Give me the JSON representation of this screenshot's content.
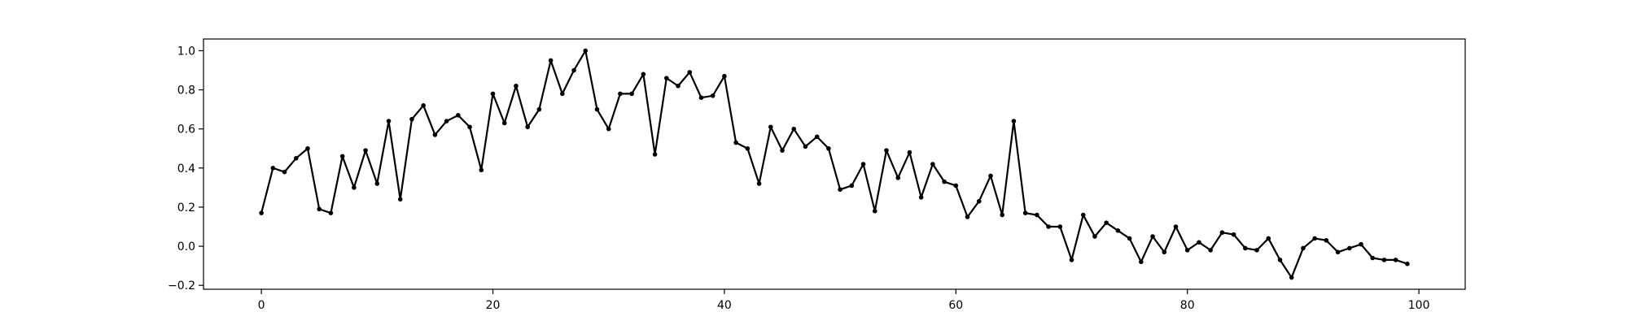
{
  "chart_data": {
    "type": "line",
    "title": "",
    "xlabel": "",
    "ylabel": "",
    "xlim": [
      -5,
      104
    ],
    "ylim": [
      -0.22,
      1.06
    ],
    "grid": false,
    "legend": "none",
    "xticks": [
      0,
      20,
      40,
      60,
      80,
      100
    ],
    "yticks": [
      -0.2,
      0.0,
      0.2,
      0.4,
      0.6,
      0.8,
      1.0
    ],
    "xtick_labels": [
      "0",
      "20",
      "40",
      "60",
      "80",
      "100"
    ],
    "ytick_labels": [
      "−0.2",
      "0.0",
      "0.2",
      "0.4",
      "0.6",
      "0.8",
      "1.0"
    ],
    "series": [
      {
        "color": "#000000",
        "marker": "dot",
        "x": [
          0,
          1,
          2,
          3,
          4,
          5,
          6,
          7,
          8,
          9,
          10,
          11,
          12,
          13,
          14,
          15,
          16,
          17,
          18,
          19,
          20,
          21,
          22,
          23,
          24,
          25,
          26,
          27,
          28,
          29,
          30,
          31,
          32,
          33,
          34,
          35,
          36,
          37,
          38,
          39,
          40,
          41,
          42,
          43,
          44,
          45,
          46,
          47,
          48,
          49,
          50,
          51,
          52,
          53,
          54,
          55,
          56,
          57,
          58,
          59,
          60,
          61,
          62,
          63,
          64,
          65,
          66,
          67,
          68,
          69,
          70,
          71,
          72,
          73,
          74,
          75,
          76,
          77,
          78,
          79,
          80,
          81,
          82,
          83,
          84,
          85,
          86,
          87,
          88,
          89,
          90,
          91,
          92,
          93,
          94,
          95,
          96,
          97,
          98,
          99
        ],
        "y": [
          0.17,
          0.4,
          0.38,
          0.45,
          0.5,
          0.19,
          0.17,
          0.46,
          0.3,
          0.49,
          0.32,
          0.64,
          0.24,
          0.65,
          0.72,
          0.57,
          0.64,
          0.67,
          0.61,
          0.39,
          0.78,
          0.63,
          0.82,
          0.61,
          0.7,
          0.95,
          0.78,
          0.9,
          1.0,
          0.7,
          0.6,
          0.78,
          0.78,
          0.88,
          0.47,
          0.86,
          0.82,
          0.89,
          0.76,
          0.77,
          0.87,
          0.53,
          0.5,
          0.32,
          0.61,
          0.49,
          0.6,
          0.51,
          0.56,
          0.5,
          0.29,
          0.31,
          0.42,
          0.18,
          0.49,
          0.35,
          0.48,
          0.25,
          0.42,
          0.33,
          0.31,
          0.15,
          0.23,
          0.36,
          0.16,
          0.64,
          0.17,
          0.16,
          0.1,
          0.1,
          -0.07,
          0.16,
          0.05,
          0.12,
          0.08,
          0.04,
          -0.08,
          0.05,
          -0.03,
          0.1,
          -0.02,
          0.02,
          -0.02,
          0.07,
          0.06,
          -0.01,
          -0.02,
          0.04,
          -0.07,
          -0.16,
          -0.01,
          0.04,
          0.03,
          -0.03,
          -0.01,
          0.01,
          -0.06,
          -0.07,
          -0.07,
          -0.09
        ]
      }
    ]
  }
}
